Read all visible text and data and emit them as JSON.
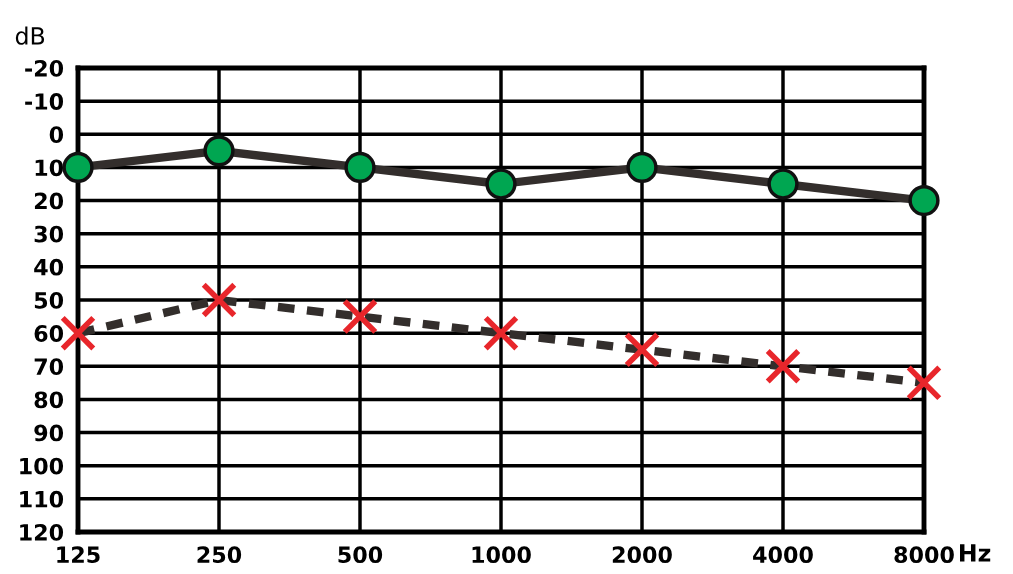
{
  "chart_data": {
    "type": "line",
    "xlabel": "Hz",
    "ylabel": "dB",
    "categories": [
      "125",
      "250",
      "500",
      "1000",
      "2000",
      "4000",
      "8000"
    ],
    "series": [
      {
        "color": "#00a651",
        "marker": "circle",
        "line_style": "solid",
        "values": [
          10,
          5,
          10,
          15,
          10,
          15,
          20
        ]
      },
      {
        "color": "#e8262b",
        "marker": "cross",
        "line_style": "dashed",
        "values": [
          60,
          50,
          55,
          60,
          65,
          70,
          75
        ]
      }
    ],
    "ylim": [
      120,
      -20
    ],
    "yticks": [
      -20,
      -10,
      0,
      10,
      20,
      30,
      40,
      50,
      60,
      70,
      80,
      90,
      100,
      110,
      120
    ],
    "grid": true
  }
}
